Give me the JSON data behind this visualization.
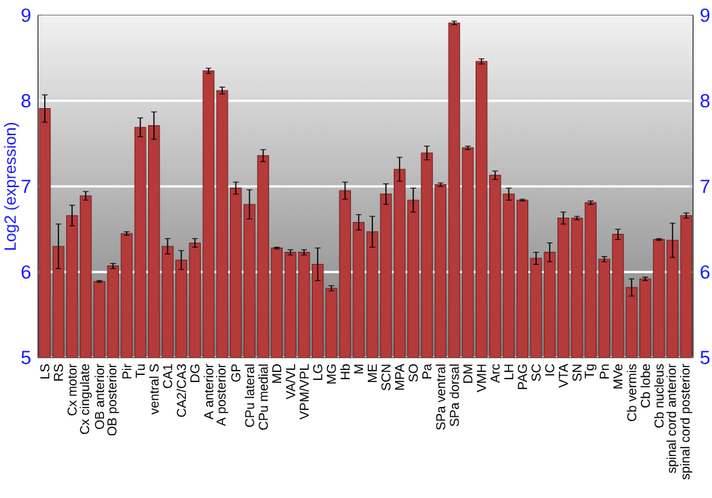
{
  "chart_data": {
    "type": "bar",
    "ylabel": "Log2 (expression)",
    "categories": [
      "LS",
      "RS",
      "Cx motor",
      "Cx cingulate",
      "OB anterior",
      "OB posterior",
      "Pir",
      "Tu",
      "ventral S",
      "CA1",
      "CA2/CA3",
      "DG",
      "A anterior",
      "A posterior",
      "GP",
      "CPu lateral",
      "CPu medial",
      "MD",
      "VA/VL",
      "VPM/VPL",
      "LG",
      "MG",
      "Hb",
      "M",
      "ME",
      "SCN",
      "MPA",
      "SO",
      "Pa",
      "SPa ventral",
      "SPa dorsal",
      "DM",
      "VMH",
      "Arc",
      "LH",
      "PAG",
      "SC",
      "IC",
      "VTA",
      "SN",
      "Tg",
      "Pn",
      "MVe",
      "Cb vermis",
      "Cb lobe",
      "Cb nucleus",
      "spinal cord anterior",
      "spinal cord posterior"
    ],
    "values": [
      7.91,
      6.3,
      6.66,
      6.89,
      5.89,
      6.07,
      6.45,
      7.69,
      7.71,
      6.3,
      6.14,
      6.34,
      8.35,
      8.12,
      6.98,
      6.79,
      7.36,
      6.28,
      6.23,
      6.23,
      6.09,
      5.81,
      6.95,
      6.58,
      6.47,
      6.91,
      7.2,
      6.84,
      7.39,
      7.02,
      8.91,
      7.45,
      8.46,
      7.13,
      6.91,
      6.84,
      6.16,
      6.23,
      6.63,
      6.63,
      6.81,
      6.15,
      6.44,
      5.82,
      5.92,
      6.38,
      6.37,
      6.66
    ],
    "errors": [
      0.16,
      0.26,
      0.12,
      0.05,
      0.01,
      0.03,
      0.02,
      0.11,
      0.16,
      0.09,
      0.11,
      0.05,
      0.03,
      0.04,
      0.07,
      0.17,
      0.07,
      0.01,
      0.03,
      0.03,
      0.19,
      0.03,
      0.1,
      0.09,
      0.18,
      0.12,
      0.14,
      0.14,
      0.08,
      0.02,
      0.02,
      0.02,
      0.03,
      0.05,
      0.07,
      0.01,
      0.07,
      0.11,
      0.07,
      0.02,
      0.02,
      0.03,
      0.06,
      0.1,
      0.02,
      0.01,
      0.2,
      0.03
    ],
    "color": "#b53a3a",
    "ylim": [
      5,
      9
    ],
    "yticks": [
      5,
      6,
      7,
      8,
      9
    ],
    "y2lim": [
      5,
      9
    ],
    "y2ticks": [
      5,
      6,
      7,
      8,
      9
    ],
    "grid": "y"
  }
}
